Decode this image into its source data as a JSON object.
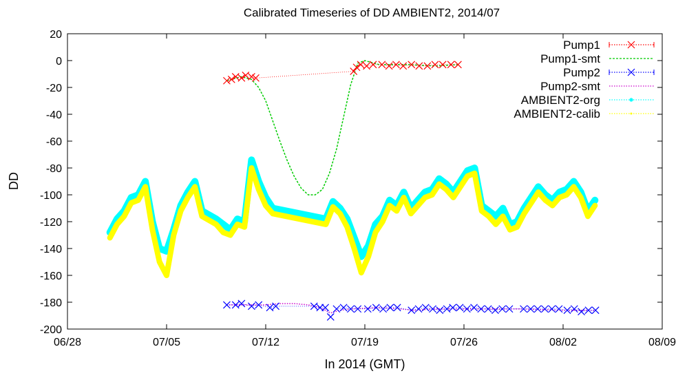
{
  "chart_data": {
    "type": "line",
    "title": "Calibrated Timeseries of DD AMBIENT2, 2014/07",
    "xlabel": "In 2014 (GMT)",
    "ylabel": "DD",
    "xlim": [
      "2014-06-28",
      "2014-08-09"
    ],
    "ylim": [
      -200,
      20
    ],
    "x_ticks": [
      "06/28",
      "07/05",
      "07/12",
      "07/19",
      "07/26",
      "08/02",
      "08/09"
    ],
    "y_ticks": [
      "20",
      "0",
      "-20",
      "-40",
      "-60",
      "-80",
      "-100",
      "-120",
      "-140",
      "-160",
      "-180",
      "-200"
    ],
    "grid": false,
    "legend_position": "top-right",
    "series": [
      {
        "name": "Pump1",
        "color": "#ff0000",
        "marker": "x",
        "x": [
          "2014-07-09 06:00",
          "2014-07-09 14:00",
          "2014-07-09 21:00",
          "2014-07-10 07:00",
          "2014-07-10 14:00",
          "2014-07-11 00:00",
          "2014-07-11 07:00",
          "2014-07-18 05:00",
          "2014-07-18 10:00",
          "2014-07-18 17:00",
          "2014-07-19 03:00",
          "2014-07-19 14:00",
          "2014-07-20 05:00",
          "2014-07-20 17:00",
          "2014-07-21 05:00",
          "2014-07-21 17:00",
          "2014-07-22 07:00",
          "2014-07-22 20:00",
          "2014-07-23 10:00",
          "2014-07-23 23:00",
          "2014-07-24 12:00",
          "2014-07-25 02:00",
          "2014-07-25 14:00"
        ],
        "y": [
          -15,
          -14,
          -12,
          -13,
          -11,
          -12,
          -13,
          -8,
          -5,
          -3,
          -4,
          -3,
          -3,
          -4,
          -3,
          -4,
          -3,
          -4,
          -4,
          -3,
          -3,
          -3,
          -3
        ]
      },
      {
        "name": "Pump1-smt",
        "color": "#00cc00",
        "style": "dashed",
        "x": [
          "2014-07-09 06:00",
          "2014-07-10 06:00",
          "2014-07-11 00:00",
          "2014-07-11 12:00",
          "2014-07-12 00:00",
          "2014-07-12 12:00",
          "2014-07-13 00:00",
          "2014-07-13 12:00",
          "2014-07-14 00:00",
          "2014-07-14 12:00",
          "2014-07-15 00:00",
          "2014-07-15 12:00",
          "2014-07-16 00:00",
          "2014-07-16 12:00",
          "2014-07-17 00:00",
          "2014-07-17 12:00",
          "2014-07-18 00:00",
          "2014-07-18 12:00",
          "2014-07-19 00:00",
          "2014-07-20 00:00",
          "2014-07-22 00:00",
          "2014-07-24 00:00",
          "2014-07-25 14:00"
        ],
        "y": [
          -15,
          -12,
          -14,
          -20,
          -30,
          -45,
          -60,
          -74,
          -86,
          -95,
          -100,
          -100,
          -96,
          -84,
          -66,
          -42,
          -18,
          -2,
          0,
          -3,
          -3,
          -4,
          -3
        ]
      },
      {
        "name": "Pump2",
        "color": "#0000ff",
        "marker": "x",
        "x": [
          "2014-07-09 06:00",
          "2014-07-09 21:00",
          "2014-07-10 07:00",
          "2014-07-11 00:00",
          "2014-07-11 12:00",
          "2014-07-12 07:00",
          "2014-07-12 17:00",
          "2014-07-15 10:00",
          "2014-07-15 20:00",
          "2014-07-16 05:00",
          "2014-07-16 14:00",
          "2014-07-17 00:00",
          "2014-07-17 12:00",
          "2014-07-18 00:00",
          "2014-07-18 12:00",
          "2014-07-19 05:00",
          "2014-07-19 19:00",
          "2014-07-20 07:00",
          "2014-07-20 19:00",
          "2014-07-21 07:00",
          "2014-07-22 07:00",
          "2014-07-22 19:00",
          "2014-07-23 07:00",
          "2014-07-23 19:00",
          "2014-07-24 07:00",
          "2014-07-24 19:00",
          "2014-07-25 05:00",
          "2014-07-25 17:00",
          "2014-07-26 05:00",
          "2014-07-26 17:00",
          "2014-07-27 05:00",
          "2014-07-27 17:00",
          "2014-07-28 05:00",
          "2014-07-28 17:00",
          "2014-07-29 05:00",
          "2014-07-30 05:00",
          "2014-07-30 17:00",
          "2014-07-31 05:00",
          "2014-07-31 17:00",
          "2014-08-01 05:00",
          "2014-08-01 17:00",
          "2014-08-02 07:00",
          "2014-08-02 19:00",
          "2014-08-03 07:00",
          "2014-08-03 19:00",
          "2014-08-04 07:00"
        ],
        "y": [
          -182,
          -182,
          -181,
          -183,
          -182,
          -184,
          -183,
          -183,
          -184,
          -184,
          -191,
          -185,
          -184,
          -185,
          -185,
          -185,
          -184,
          -185,
          -184,
          -184,
          -186,
          -185,
          -184,
          -185,
          -186,
          -185,
          -184,
          -184,
          -185,
          -184,
          -185,
          -185,
          -186,
          -185,
          -185,
          -185,
          -185,
          -185,
          -185,
          -185,
          -185,
          -186,
          -185,
          -187,
          -186,
          -186
        ]
      },
      {
        "name": "Pump2-smt",
        "color": "#cc00cc",
        "style": "dotted",
        "x": [
          "2014-07-09 06:00",
          "2014-07-10 12:00",
          "2014-07-12 00:00",
          "2014-07-13 00:00",
          "2014-07-14 00:00",
          "2014-07-15 00:00",
          "2014-07-15 20:00",
          "2014-07-16 14:00",
          "2014-07-17 06:00",
          "2014-07-18 00:00",
          "2014-07-20 00:00",
          "2014-07-21 12:00",
          "2014-07-22 12:00",
          "2014-07-24 00:00",
          "2014-07-27 00:00",
          "2014-07-30 00:00",
          "2014-08-02 00:00",
          "2014-08-04 07:00"
        ],
        "y": [
          -182,
          -182,
          -182,
          -181,
          -181,
          -182,
          -184,
          -188,
          -186,
          -185,
          -184,
          -185,
          -186,
          -185,
          -185,
          -185,
          -186,
          -186
        ]
      },
      {
        "name": "AMBIENT2-org",
        "color": "#00ffff",
        "marker": "*",
        "x": [
          "2014-07-01 00:00",
          "2014-07-01 12:00",
          "2014-07-02 00:00",
          "2014-07-02 12:00",
          "2014-07-03 00:00",
          "2014-07-03 12:00",
          "2014-07-04 00:00",
          "2014-07-04 12:00",
          "2014-07-05 00:00",
          "2014-07-05 12:00",
          "2014-07-06 00:00",
          "2014-07-06 12:00",
          "2014-07-07 00:00",
          "2014-07-07 12:00",
          "2014-07-08 00:00",
          "2014-07-08 12:00",
          "2014-07-09 00:00",
          "2014-07-09 12:00",
          "2014-07-10 00:00",
          "2014-07-10 12:00",
          "2014-07-11 00:00",
          "2014-07-11 12:00",
          "2014-07-12 00:00",
          "2014-07-12 12:00",
          "2014-07-16 06:00",
          "2014-07-16 18:00",
          "2014-07-17 06:00",
          "2014-07-17 18:00",
          "2014-07-18 06:00",
          "2014-07-18 18:00",
          "2014-07-19 06:00",
          "2014-07-19 18:00",
          "2014-07-20 06:00",
          "2014-07-20 18:00",
          "2014-07-21 06:00",
          "2014-07-21 18:00",
          "2014-07-22 06:00",
          "2014-07-22 18:00",
          "2014-07-23 06:00",
          "2014-07-23 18:00",
          "2014-07-24 06:00",
          "2014-07-24 18:00",
          "2014-07-25 06:00",
          "2014-07-25 18:00",
          "2014-07-26 06:00",
          "2014-07-26 18:00",
          "2014-07-27 06:00",
          "2014-07-27 18:00",
          "2014-07-28 06:00",
          "2014-07-28 18:00",
          "2014-07-29 06:00",
          "2014-07-29 18:00",
          "2014-07-30 06:00",
          "2014-07-30 18:00",
          "2014-07-31 06:00",
          "2014-07-31 18:00",
          "2014-08-01 06:00",
          "2014-08-01 18:00",
          "2014-08-02 06:00",
          "2014-08-02 18:00",
          "2014-08-03 06:00",
          "2014-08-03 18:00",
          "2014-08-04 06:00"
        ],
        "y": [
          -128,
          -118,
          -112,
          -102,
          -100,
          -90,
          -120,
          -140,
          -142,
          -126,
          -108,
          -98,
          -90,
          -112,
          -115,
          -118,
          -122,
          -126,
          -118,
          -120,
          -74,
          -90,
          -102,
          -110,
          -118,
          -105,
          -110,
          -118,
          -132,
          -146,
          -138,
          -122,
          -116,
          -104,
          -108,
          -98,
          -110,
          -104,
          -98,
          -96,
          -88,
          -92,
          -98,
          -90,
          -82,
          -80,
          -108,
          -112,
          -116,
          -110,
          -122,
          -120,
          -110,
          -102,
          -94,
          -100,
          -104,
          -98,
          -96,
          -90,
          -98,
          -112,
          -104
        ]
      },
      {
        "name": "AMBIENT2-calib",
        "color": "#ffff00",
        "marker": "dot",
        "x": [
          "2014-07-01 00:00",
          "2014-07-01 12:00",
          "2014-07-02 00:00",
          "2014-07-02 12:00",
          "2014-07-03 00:00",
          "2014-07-03 12:00",
          "2014-07-04 00:00",
          "2014-07-04 12:00",
          "2014-07-05 00:00",
          "2014-07-05 12:00",
          "2014-07-06 00:00",
          "2014-07-06 12:00",
          "2014-07-07 00:00",
          "2014-07-07 12:00",
          "2014-07-08 00:00",
          "2014-07-08 12:00",
          "2014-07-09 00:00",
          "2014-07-09 12:00",
          "2014-07-10 00:00",
          "2014-07-10 12:00",
          "2014-07-11 00:00",
          "2014-07-11 12:00",
          "2014-07-12 00:00",
          "2014-07-12 12:00",
          "2014-07-16 06:00",
          "2014-07-16 18:00",
          "2014-07-17 06:00",
          "2014-07-17 18:00",
          "2014-07-18 06:00",
          "2014-07-18 18:00",
          "2014-07-19 06:00",
          "2014-07-19 18:00",
          "2014-07-20 06:00",
          "2014-07-20 18:00",
          "2014-07-21 06:00",
          "2014-07-21 18:00",
          "2014-07-22 06:00",
          "2014-07-22 18:00",
          "2014-07-23 06:00",
          "2014-07-23 18:00",
          "2014-07-24 06:00",
          "2014-07-24 18:00",
          "2014-07-25 06:00",
          "2014-07-25 18:00",
          "2014-07-26 06:00",
          "2014-07-26 18:00",
          "2014-07-27 06:00",
          "2014-07-27 18:00",
          "2014-07-28 06:00",
          "2014-07-28 18:00",
          "2014-07-29 06:00",
          "2014-07-29 18:00",
          "2014-07-30 06:00",
          "2014-07-30 18:00",
          "2014-07-31 06:00",
          "2014-07-31 18:00",
          "2014-08-01 06:00",
          "2014-08-01 18:00",
          "2014-08-02 06:00",
          "2014-08-02 18:00",
          "2014-08-03 06:00",
          "2014-08-03 18:00",
          "2014-08-04 06:00"
        ],
        "y": [
          -132,
          -122,
          -116,
          -106,
          -104,
          -94,
          -126,
          -150,
          -160,
          -130,
          -112,
          -102,
          -94,
          -116,
          -119,
          -122,
          -128,
          -130,
          -122,
          -124,
          -80,
          -96,
          -108,
          -114,
          -122,
          -109,
          -114,
          -124,
          -140,
          -158,
          -146,
          -128,
          -120,
          -108,
          -112,
          -102,
          -114,
          -108,
          -102,
          -100,
          -92,
          -96,
          -102,
          -94,
          -86,
          -84,
          -112,
          -116,
          -122,
          -116,
          -126,
          -124,
          -114,
          -106,
          -98,
          -104,
          -108,
          -102,
          -100,
          -94,
          -102,
          -116,
          -108
        ]
      }
    ]
  }
}
